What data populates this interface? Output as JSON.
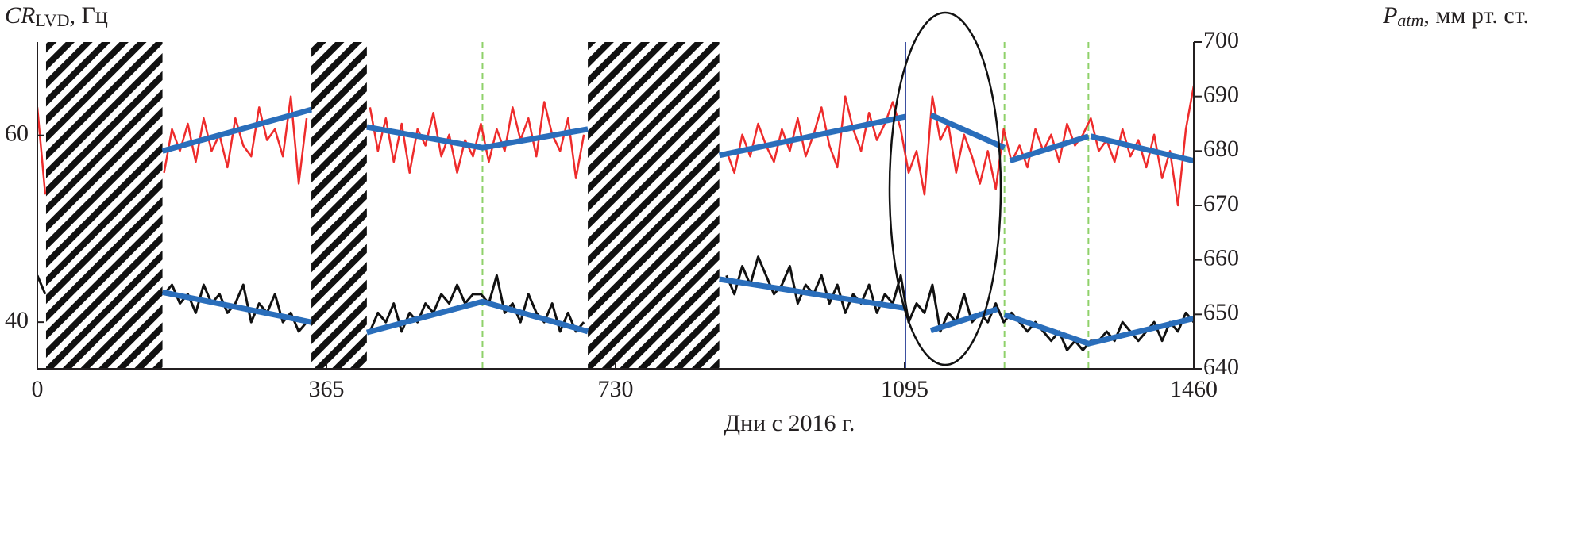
{
  "chart_data": {
    "type": "line",
    "x_label": "Дни с 2016 г.",
    "y_label": {
      "main": "CR",
      "sub": "LVD",
      "unit": ", Гц"
    },
    "y2_label": {
      "main": "P",
      "sub": "atm",
      "unit": ", мм рт. ст."
    },
    "xlim": [
      0,
      1460
    ],
    "xticks": [
      0,
      365,
      730,
      1095,
      1460
    ],
    "ylim": [
      35,
      70
    ],
    "yticks": [
      40,
      60
    ],
    "y2lim": [
      640,
      700
    ],
    "y2ticks": [
      640,
      650,
      660,
      670,
      680,
      690,
      700
    ],
    "shaded_regions": [
      [
        11,
        158
      ],
      [
        346,
        416
      ],
      [
        695,
        861
      ]
    ],
    "vlines": [
      {
        "x": 562,
        "color": "#8fd16a",
        "dashed": true
      },
      {
        "x": 1096,
        "color": "#3b4fa0",
        "dashed": false
      },
      {
        "x": 1221,
        "color": "#8fd16a",
        "dashed": true
      },
      {
        "x": 1327,
        "color": "#8fd16a",
        "dashed": true
      }
    ],
    "x": [
      0,
      10,
      20,
      30,
      40,
      50,
      60,
      70,
      80,
      90,
      100,
      110,
      120,
      130,
      140,
      150,
      160,
      170,
      180,
      190,
      200,
      210,
      220,
      230,
      240,
      250,
      260,
      270,
      280,
      290,
      300,
      310,
      320,
      330,
      340,
      350,
      360,
      370,
      380,
      390,
      400,
      410,
      420,
      430,
      440,
      450,
      460,
      470,
      480,
      490,
      500,
      510,
      520,
      530,
      540,
      550,
      560,
      570,
      580,
      590,
      600,
      610,
      620,
      630,
      640,
      650,
      660,
      670,
      680,
      690,
      700,
      710,
      720,
      730,
      740,
      750,
      760,
      770,
      780,
      790,
      800,
      810,
      820,
      830,
      840,
      850,
      860,
      870,
      880,
      890,
      900,
      910,
      920,
      930,
      940,
      950,
      960,
      970,
      980,
      990,
      1000,
      1010,
      1020,
      1030,
      1040,
      1050,
      1060,
      1070,
      1080,
      1090,
      1100,
      1110,
      1120,
      1130,
      1140,
      1150,
      1160,
      1170,
      1180,
      1190,
      1200,
      1210,
      1220,
      1230,
      1240,
      1250,
      1260,
      1270,
      1280,
      1290,
      1300,
      1310,
      1320,
      1330,
      1340,
      1350,
      1360,
      1370,
      1380,
      1390,
      1400,
      1410,
      1420,
      1430,
      1440,
      1450,
      1460
    ],
    "series": [
      {
        "color": "#ee2b2b",
        "axis": "y2",
        "width": 2.5,
        "values": [
          688,
          672,
          null,
          null,
          null,
          null,
          null,
          null,
          null,
          null,
          null,
          null,
          null,
          null,
          null,
          null,
          676,
          684,
          680,
          685,
          678,
          686,
          680,
          683,
          677,
          686,
          681,
          679,
          688,
          682,
          684,
          679,
          690,
          674,
          686,
          null,
          null,
          null,
          null,
          null,
          null,
          null,
          688,
          680,
          686,
          678,
          685,
          676,
          684,
          681,
          687,
          679,
          683,
          676,
          682,
          679,
          685,
          678,
          684,
          680,
          688,
          682,
          686,
          679,
          689,
          683,
          680,
          686,
          675,
          683,
          null,
          null,
          null,
          null,
          null,
          null,
          null,
          null,
          null,
          null,
          null,
          null,
          null,
          null,
          null,
          null,
          null,
          680,
          676,
          683,
          679,
          685,
          681,
          678,
          684,
          680,
          686,
          679,
          683,
          688,
          681,
          677,
          690,
          684,
          680,
          687,
          682,
          685,
          689,
          684,
          676,
          680,
          672,
          690,
          682,
          685,
          676,
          683,
          679,
          674,
          680,
          673,
          684,
          678,
          681,
          677,
          684,
          680,
          683,
          678,
          685,
          681,
          683,
          686,
          680,
          682,
          678,
          684,
          679,
          682,
          677,
          683,
          675,
          680,
          670,
          684,
          692
        ]
      },
      {
        "color": "#111111",
        "width": 3,
        "values": [
          45,
          43,
          null,
          null,
          null,
          null,
          null,
          null,
          null,
          null,
          null,
          null,
          null,
          null,
          null,
          null,
          43,
          44,
          42,
          43,
          41,
          44,
          42,
          43,
          41,
          42,
          44,
          40,
          42,
          41,
          43,
          40,
          41,
          39,
          40,
          null,
          null,
          null,
          null,
          null,
          null,
          null,
          39,
          41,
          40,
          42,
          39,
          41,
          40,
          42,
          41,
          43,
          42,
          44,
          42,
          43,
          43,
          42,
          45,
          41,
          42,
          40,
          43,
          41,
          40,
          42,
          39,
          41,
          39,
          40,
          null,
          null,
          null,
          null,
          null,
          null,
          null,
          null,
          null,
          null,
          null,
          null,
          null,
          null,
          null,
          null,
          null,
          45,
          43,
          46,
          44,
          47,
          45,
          43,
          44,
          46,
          42,
          44,
          43,
          45,
          42,
          44,
          41,
          43,
          42,
          44,
          41,
          43,
          42,
          45,
          40,
          42,
          41,
          44,
          39,
          41,
          40,
          43,
          40,
          41,
          40,
          42,
          40,
          41,
          40,
          39,
          40,
          39,
          38,
          39,
          37,
          38,
          37,
          38,
          38,
          39,
          38,
          40,
          39,
          38,
          39,
          40,
          38,
          40,
          39,
          41,
          40
        ]
      },
      {
        "color": "#2a6ebb",
        "axis": "y2",
        "width": 7,
        "x": [
          158,
          346
        ],
        "values": [
          680,
          687.6
        ]
      },
      {
        "color": "#2a6ebb",
        "axis": "y2",
        "width": 7,
        "x": [
          416,
          562,
          695
        ],
        "values": [
          684.4,
          680.6,
          684
        ]
      },
      {
        "color": "#2a6ebb",
        "axis": "y2",
        "width": 7,
        "x": [
          861,
          1096
        ],
        "values": [
          679.2,
          686.3
        ]
      },
      {
        "color": "#2a6ebb",
        "axis": "y2",
        "width": 7,
        "x": [
          1128,
          1221
        ],
        "values": [
          686.6,
          680.6
        ]
      },
      {
        "color": "#2a6ebb",
        "axis": "y2",
        "width": 7,
        "x": [
          1228,
          1327
        ],
        "values": [
          678.2,
          682.7
        ]
      },
      {
        "color": "#2a6ebb",
        "axis": "y2",
        "width": 7,
        "x": [
          1330,
          1460
        ],
        "values": [
          682.7,
          678.2
        ]
      },
      {
        "color": "#2a6ebb",
        "width": 7,
        "x": [
          158,
          346
        ],
        "values": [
          43.2,
          40
        ]
      },
      {
        "color": "#2a6ebb",
        "width": 7,
        "x": [
          416,
          562,
          695
        ],
        "values": [
          38.9,
          42.2,
          39
        ]
      },
      {
        "color": "#2a6ebb",
        "width": 7,
        "x": [
          861,
          1096
        ],
        "values": [
          44.6,
          41.5
        ]
      },
      {
        "color": "#2a6ebb",
        "width": 7,
        "x": [
          1128,
          1212
        ],
        "values": [
          39.1,
          41.4
        ]
      },
      {
        "color": "#2a6ebb",
        "width": 7,
        "x": [
          1221,
          1327,
          1460
        ],
        "values": [
          40.8,
          37.7,
          40.4
        ]
      }
    ]
  }
}
